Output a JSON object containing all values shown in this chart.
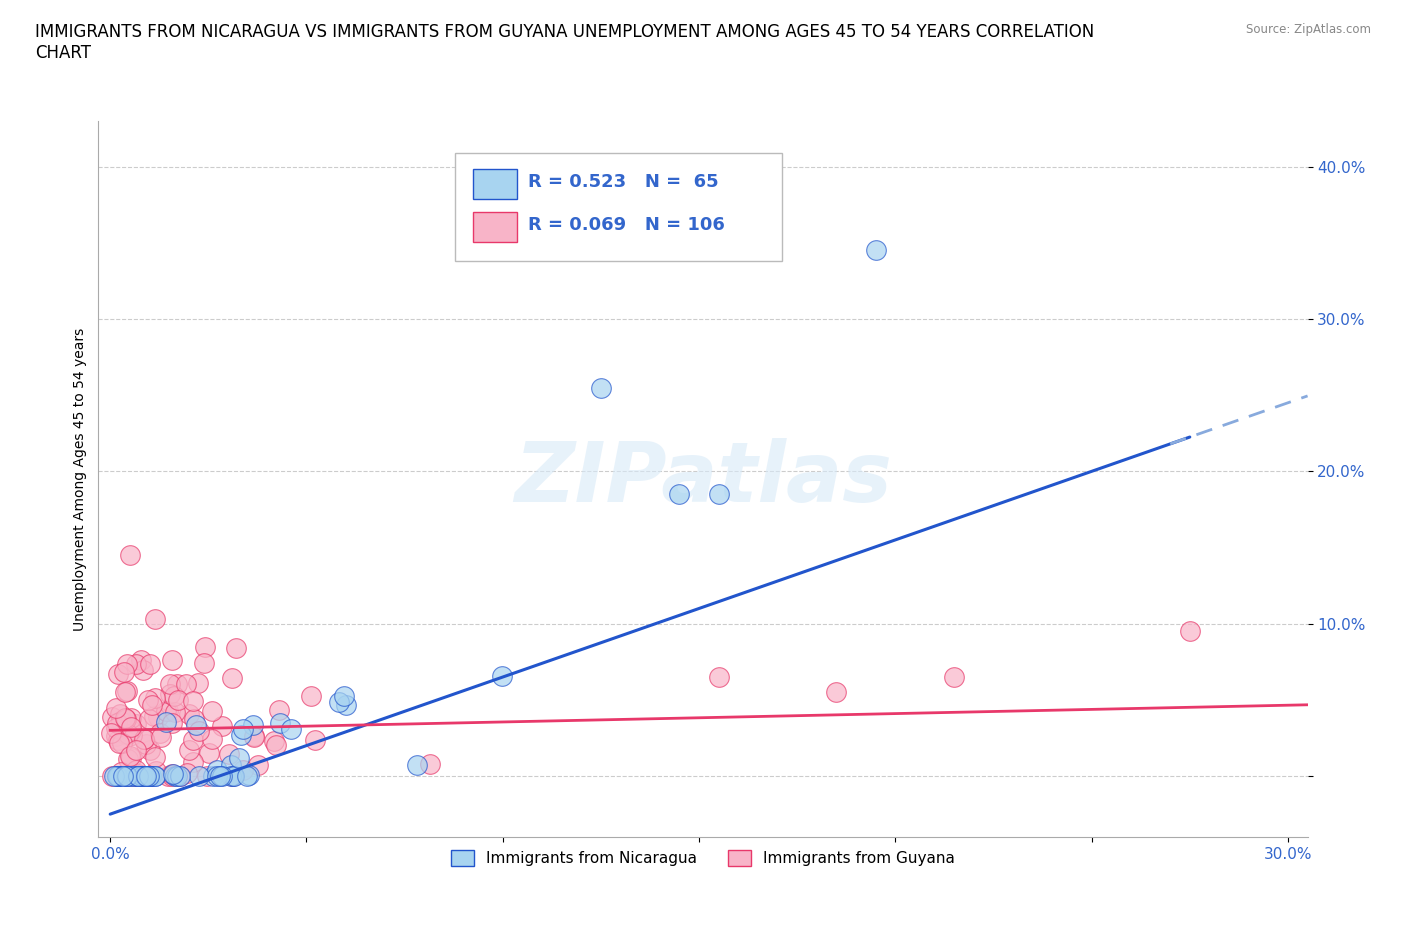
{
  "title": "IMMIGRANTS FROM NICARAGUA VS IMMIGRANTS FROM GUYANA UNEMPLOYMENT AMONG AGES 45 TO 54 YEARS CORRELATION\nCHART",
  "source": "Source: ZipAtlas.com",
  "ylabel": "Unemployment Among Ages 45 to 54 years",
  "xlim": [
    -0.003,
    0.305
  ],
  "ylim": [
    -0.04,
    0.43
  ],
  "xticks": [
    0.0,
    0.05,
    0.1,
    0.15,
    0.2,
    0.25,
    0.3
  ],
  "yticks": [
    0.0,
    0.1,
    0.2,
    0.3,
    0.4
  ],
  "ytick_labels": [
    "",
    "10.0%",
    "20.0%",
    "30.0%",
    "40.0%"
  ],
  "xtick_labels": [
    "0.0%",
    "",
    "",
    "",
    "",
    "",
    "30.0%"
  ],
  "R_nicaragua": 0.523,
  "N_nicaragua": 65,
  "R_guyana": 0.069,
  "N_guyana": 106,
  "nicaragua_color": "#a8d4f0",
  "guyana_color": "#f8b4c8",
  "trend_nicaragua_color": "#2255cc",
  "trend_guyana_color": "#e8386a",
  "legend_label_nicaragua": "Immigrants from Nicaragua",
  "legend_label_guyana": "Immigrants from Guyana",
  "watermark": "ZIPatlas",
  "background_color": "#ffffff",
  "grid_color": "#cccccc",
  "title_fontsize": 12,
  "label_fontsize": 10,
  "tick_fontsize": 11,
  "trend_nic_slope": 0.9,
  "trend_nic_intercept": -0.025,
  "trend_guy_slope": 0.055,
  "trend_guy_intercept": 0.03
}
